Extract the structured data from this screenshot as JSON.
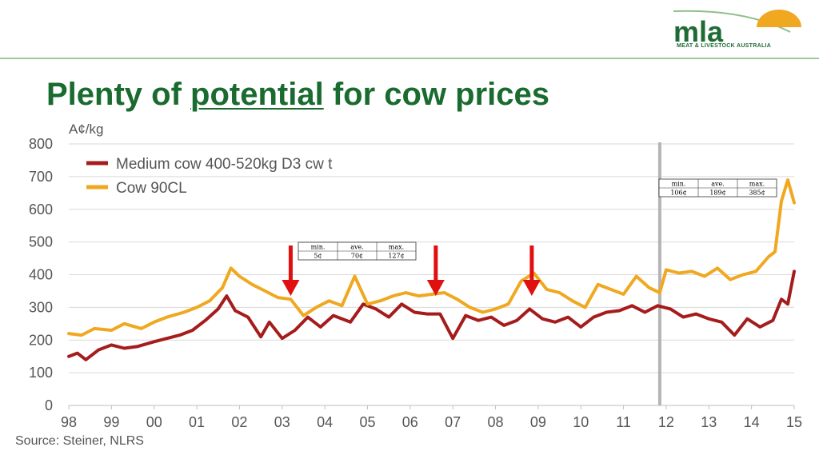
{
  "title_parts": [
    "Plenty of ",
    "potential",
    " for cow prices"
  ],
  "logo": {
    "text": "mla",
    "subtitle": "MEAT & LIVESTOCK AUSTRALIA"
  },
  "source": "Source: Steiner, NLRS",
  "colors": {
    "title": "#1a6b2f",
    "medium": "#a51c1c",
    "cow90": "#f0a820",
    "arrow": "#e01010",
    "divider": "#b5b5b5"
  },
  "stats_tables": [
    {
      "headers": [
        "min.",
        "ave.",
        "max."
      ],
      "values": [
        "5¢",
        "70¢",
        "127¢"
      ]
    },
    {
      "headers": [
        "min.",
        "ave.",
        "max."
      ],
      "values": [
        "106¢",
        "189¢",
        "385¢"
      ]
    }
  ],
  "chart_data": {
    "type": "line",
    "ylabel": "A¢/kg",
    "xlabel": "",
    "ylim": [
      0,
      800
    ],
    "yticks": [
      0,
      100,
      200,
      300,
      400,
      500,
      600,
      700,
      800
    ],
    "xlim": [
      1998,
      2015
    ],
    "xtick_labels": [
      "98",
      "99",
      "00",
      "01",
      "02",
      "03",
      "04",
      "05",
      "06",
      "07",
      "08",
      "09",
      "10",
      "11",
      "12",
      "13",
      "14",
      "15"
    ],
    "grid": true,
    "legend": "top-left",
    "vertical_marker_x": 2011.85,
    "arrows_x": [
      2003.2,
      2006.6,
      2008.85
    ],
    "series": [
      {
        "name": "Medium cow  400-520kg D3 cw t",
        "x": [
          1998.0,
          1998.2,
          1998.4,
          1998.7,
          1999.0,
          1999.3,
          1999.6,
          2000.0,
          2000.3,
          2000.6,
          2000.9,
          2001.2,
          2001.5,
          2001.7,
          2001.9,
          2002.2,
          2002.5,
          2002.7,
          2003.0,
          2003.3,
          2003.6,
          2003.9,
          2004.2,
          2004.6,
          2004.9,
          2005.2,
          2005.5,
          2005.8,
          2006.1,
          2006.4,
          2006.7,
          2007.0,
          2007.3,
          2007.6,
          2007.9,
          2008.2,
          2008.5,
          2008.8,
          2009.1,
          2009.4,
          2009.7,
          2010.0,
          2010.3,
          2010.6,
          2010.9,
          2011.2,
          2011.5,
          2011.8,
          2012.1,
          2012.4,
          2012.7,
          2013.0,
          2013.3,
          2013.6,
          2013.9,
          2014.2,
          2014.5,
          2014.7,
          2014.85,
          2015.0
        ],
        "values": [
          150,
          160,
          140,
          170,
          185,
          175,
          180,
          195,
          205,
          215,
          230,
          260,
          295,
          335,
          290,
          270,
          210,
          255,
          205,
          230,
          270,
          240,
          275,
          255,
          310,
          295,
          270,
          310,
          285,
          280,
          280,
          205,
          275,
          260,
          270,
          245,
          260,
          295,
          265,
          255,
          270,
          240,
          270,
          285,
          290,
          305,
          285,
          305,
          295,
          270,
          280,
          265,
          255,
          215,
          265,
          240,
          260,
          325,
          310,
          410
        ]
      },
      {
        "name": "Cow 90CL",
        "x": [
          1998.0,
          1998.3,
          1998.6,
          1999.0,
          1999.3,
          1999.7,
          2000.0,
          2000.3,
          2000.7,
          2001.0,
          2001.3,
          2001.6,
          2001.8,
          2002.0,
          2002.3,
          2002.6,
          2002.9,
          2003.2,
          2003.5,
          2003.8,
          2004.1,
          2004.4,
          2004.7,
          2005.0,
          2005.3,
          2005.6,
          2005.9,
          2006.2,
          2006.5,
          2006.8,
          2007.1,
          2007.4,
          2007.7,
          2008.0,
          2008.3,
          2008.6,
          2008.9,
          2009.2,
          2009.5,
          2009.8,
          2010.1,
          2010.4,
          2010.7,
          2011.0,
          2011.3,
          2011.6,
          2011.85,
          2012.0,
          2012.3,
          2012.6,
          2012.9,
          2013.2,
          2013.5,
          2013.8,
          2014.1,
          2014.4,
          2014.55,
          2014.7,
          2014.85,
          2015.0
        ],
        "values": [
          220,
          215,
          235,
          230,
          250,
          235,
          255,
          270,
          285,
          300,
          320,
          360,
          420,
          395,
          370,
          350,
          330,
          325,
          275,
          300,
          320,
          305,
          395,
          310,
          320,
          335,
          345,
          335,
          340,
          345,
          325,
          300,
          285,
          295,
          310,
          380,
          405,
          355,
          345,
          320,
          300,
          370,
          355,
          340,
          395,
          360,
          345,
          415,
          405,
          410,
          395,
          420,
          385,
          400,
          410,
          455,
          470,
          625,
          690,
          620
        ]
      }
    ]
  }
}
